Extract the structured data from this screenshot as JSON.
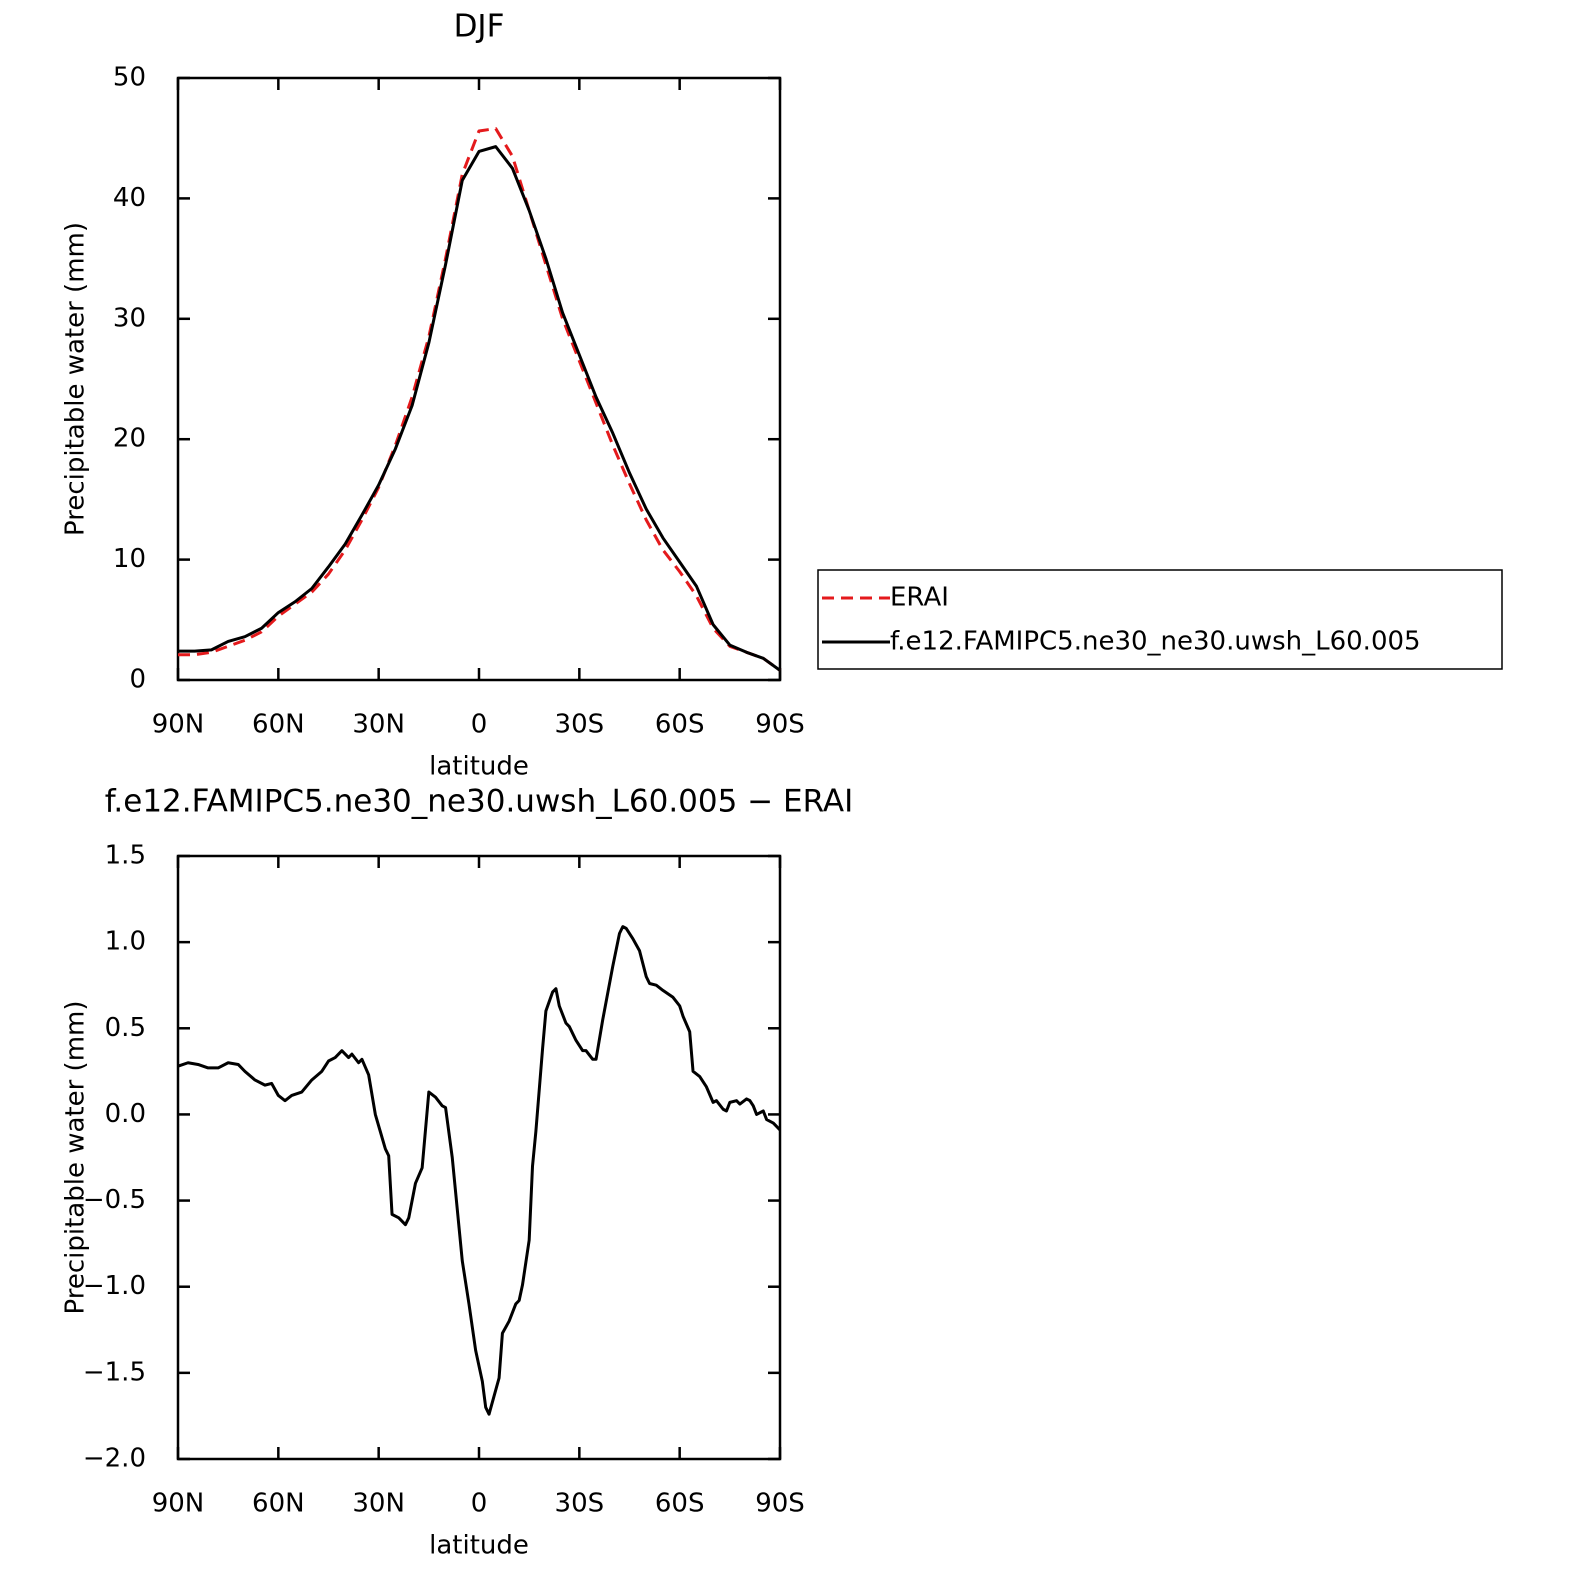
{
  "chart_data": [
    {
      "type": "line",
      "title": "DJF",
      "xlabel": "latitude",
      "ylabel": "Precipitable water (mm)",
      "x": [
        90,
        85,
        80,
        75,
        70,
        65,
        60,
        55,
        50,
        45,
        40,
        35,
        30,
        25,
        20,
        15,
        10,
        5,
        0,
        -5,
        -10,
        -15,
        -20,
        -25,
        -30,
        -35,
        -40,
        -45,
        -50,
        -55,
        -60,
        -65,
        -70,
        -75,
        -80,
        -85,
        -90
      ],
      "series": [
        {
          "name": "ERAI",
          "color": "#e41a1c",
          "linestyle": "dashed",
          "values": [
            2.1,
            2.1,
            2.3,
            2.8,
            3.3,
            4.0,
            5.3,
            6.3,
            7.3,
            8.8,
            10.8,
            13.3,
            16.0,
            19.5,
            23.5,
            28.5,
            35.0,
            42.0,
            45.6,
            45.8,
            43.5,
            39.0,
            34.5,
            30.0,
            26.5,
            23.0,
            19.5,
            16.3,
            13.3,
            10.8,
            9.0,
            7.0,
            4.3,
            2.8,
            2.3,
            1.8,
            0.8
          ]
        },
        {
          "name": "f.e12.FAMIPC5.ne30_ne30.uwsh_L60.005",
          "color": "#000000",
          "linestyle": "solid",
          "values": [
            2.4,
            2.4,
            2.5,
            3.2,
            3.6,
            4.3,
            5.6,
            6.5,
            7.6,
            9.4,
            11.3,
            13.7,
            16.2,
            19.2,
            22.8,
            28.0,
            34.5,
            41.5,
            43.9,
            44.3,
            42.5,
            39.0,
            35.0,
            30.5,
            27.0,
            23.5,
            20.5,
            17.2,
            14.2,
            11.8,
            9.8,
            7.8,
            4.6,
            2.9,
            2.3,
            1.8,
            0.8
          ]
        }
      ],
      "xlim": [
        90,
        -90
      ],
      "xticks": [
        {
          "value": 90,
          "label": "90N"
        },
        {
          "value": 60,
          "label": "60N"
        },
        {
          "value": 30,
          "label": "30N"
        },
        0,
        {
          "value": -30,
          "label": "30S"
        },
        {
          "value": -60,
          "label": "60S"
        },
        {
          "value": -90,
          "label": "90S"
        }
      ],
      "ylim": [
        0,
        50
      ],
      "yticks": [
        0,
        10,
        20,
        30,
        40,
        50
      ],
      "grid": false,
      "legend": "right"
    },
    {
      "type": "line",
      "title": "f.e12.FAMIPC5.ne30_ne30.uwsh_L60.005 − ERAI",
      "xlabel": "latitude",
      "ylabel": "Precipitable water (mm)",
      "x": [
        90,
        87,
        84,
        81,
        78,
        75,
        72,
        70,
        67,
        64,
        62,
        60,
        58,
        56,
        53,
        50,
        47,
        45,
        43,
        41,
        39,
        38,
        36,
        35,
        33,
        31,
        28,
        27,
        26,
        24,
        22,
        21,
        19,
        17,
        15,
        13,
        11,
        10,
        8,
        5,
        3,
        1,
        -1,
        -2,
        -3,
        -6,
        -7,
        -9,
        -11,
        -12,
        -13,
        -15,
        -16,
        -17,
        -19,
        -20,
        -22,
        -23,
        -24,
        -26,
        -27,
        -29,
        -31,
        -32,
        -34,
        -35,
        -37,
        -40,
        -42,
        -43,
        -44,
        -46,
        -48,
        -50,
        -51,
        -53,
        -55,
        -58,
        -60,
        -61,
        -63,
        -64,
        -66,
        -68,
        -70,
        -71,
        -73,
        -74,
        -75,
        -77,
        -78,
        -80,
        -81,
        -82,
        -83,
        -85,
        -86,
        -88,
        -90
      ],
      "values": [
        0.28,
        0.3,
        0.29,
        0.27,
        0.27,
        0.3,
        0.29,
        0.25,
        0.2,
        0.17,
        0.18,
        0.11,
        0.08,
        0.11,
        0.13,
        0.2,
        0.25,
        0.31,
        0.33,
        0.37,
        0.33,
        0.35,
        0.3,
        0.32,
        0.23,
        0.0,
        -0.2,
        -0.24,
        -0.58,
        -0.6,
        -0.64,
        -0.6,
        -0.4,
        -0.31,
        0.13,
        0.1,
        0.05,
        0.04,
        -0.25,
        -0.85,
        -1.1,
        -1.37,
        -1.55,
        -1.7,
        -1.74,
        -1.53,
        -1.27,
        -1.2,
        -1.1,
        -1.08,
        -0.99,
        -0.73,
        -0.3,
        -0.1,
        0.38,
        0.6,
        0.71,
        0.73,
        0.63,
        0.53,
        0.51,
        0.43,
        0.37,
        0.37,
        0.32,
        0.32,
        0.55,
        0.86,
        1.05,
        1.09,
        1.08,
        1.02,
        0.95,
        0.8,
        0.76,
        0.75,
        0.72,
        0.68,
        0.63,
        0.57,
        0.48,
        0.25,
        0.22,
        0.16,
        0.07,
        0.08,
        0.03,
        0.02,
        0.07,
        0.08,
        0.06,
        0.09,
        0.08,
        0.05,
        0.0,
        0.02,
        -0.03,
        -0.05,
        -0.09
      ],
      "color": "#000000",
      "xlim": [
        90,
        -90
      ],
      "xticks": [
        {
          "value": 90,
          "label": "90N"
        },
        {
          "value": 60,
          "label": "60N"
        },
        {
          "value": 30,
          "label": "30N"
        },
        0,
        {
          "value": -30,
          "label": "30S"
        },
        {
          "value": -60,
          "label": "60S"
        },
        {
          "value": -90,
          "label": "90S"
        }
      ],
      "ylim": [
        -2,
        1.5
      ],
      "yticks": [
        {
          "value": -2,
          "label": "−2.0"
        },
        {
          "value": -1.5,
          "label": "−1.5"
        },
        {
          "value": -1,
          "label": "−1.0"
        },
        {
          "value": -0.5,
          "label": "−0.5"
        },
        {
          "value": 0,
          "label": "0.0"
        },
        {
          "value": 0.5,
          "label": "0.5"
        },
        {
          "value": 1,
          "label": "1.0"
        },
        1.5
      ],
      "grid": false
    }
  ]
}
